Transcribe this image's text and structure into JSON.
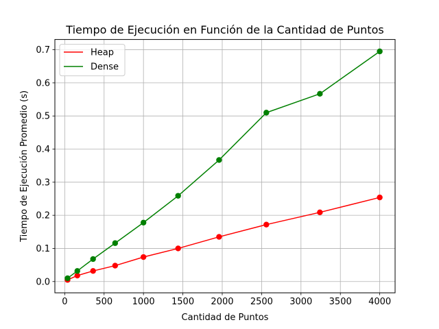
{
  "chart_data": {
    "type": "line",
    "title": "Tiempo de Ejecución en Función de la Cantidad de Puntos",
    "xlabel": "Cantidad de Puntos",
    "ylabel": "Tiempo de Ejecución Promedio (s)",
    "xlim": [
      -125,
      4195
    ],
    "ylim": [
      -0.034,
      0.731
    ],
    "xticks": [
      0,
      500,
      1000,
      1500,
      2000,
      2500,
      3000,
      3500,
      4000
    ],
    "xtick_labels": [
      "0",
      "500",
      "1000",
      "1500",
      "2000",
      "2500",
      "3000",
      "3500",
      "4000"
    ],
    "yticks": [
      0.0,
      0.1,
      0.2,
      0.3,
      0.4,
      0.5,
      0.6,
      0.7
    ],
    "ytick_labels": [
      "0.0",
      "0.1",
      "0.2",
      "0.3",
      "0.4",
      "0.5",
      "0.6",
      "0.7"
    ],
    "grid": true,
    "legend_position": "top-left",
    "x": [
      36,
      160,
      360,
      640,
      1000,
      1440,
      1960,
      2560,
      3240,
      4000
    ],
    "series": [
      {
        "name": "Heap",
        "color": "#ff0000",
        "values": [
          0.005,
          0.018,
          0.032,
          0.048,
          0.074,
          0.1,
          0.135,
          0.172,
          0.209,
          0.254
        ]
      },
      {
        "name": "Dense",
        "color": "#008000",
        "values": [
          0.01,
          0.032,
          0.068,
          0.116,
          0.178,
          0.259,
          0.367,
          0.51,
          0.567,
          0.695
        ]
      }
    ]
  }
}
